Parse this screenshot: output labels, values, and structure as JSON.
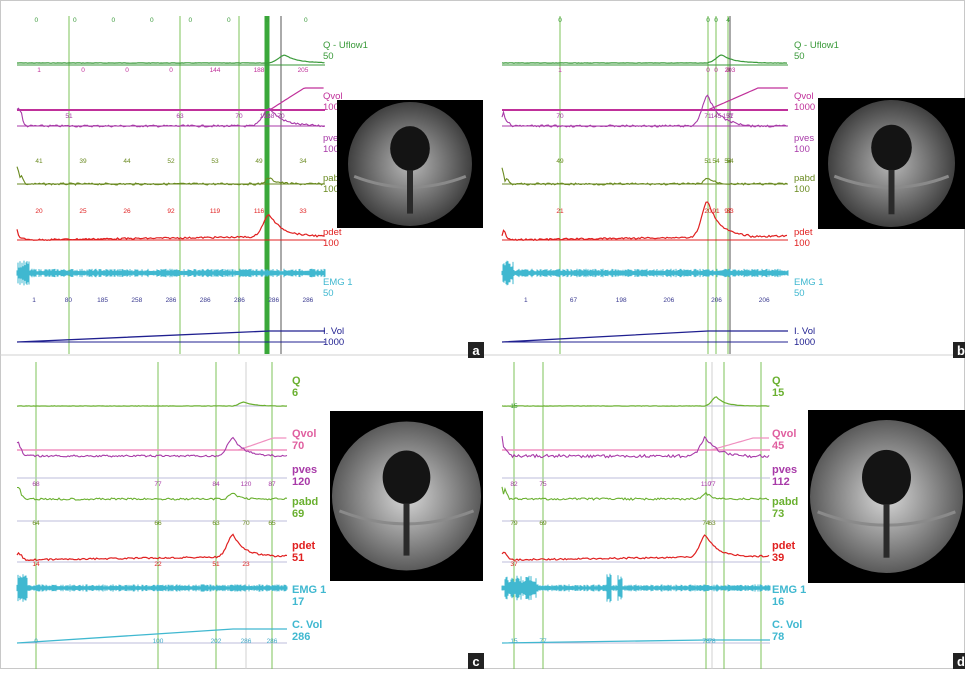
{
  "panels": [
    {
      "id": "a",
      "label": "a",
      "channels": [
        {
          "name": "Q - Uflow1",
          "scale": "50",
          "color": "#3a9a3a"
        },
        {
          "name": "Qvol",
          "scale": "1000",
          "color": "#c0309a"
        },
        {
          "name": "pves",
          "scale": "100",
          "color": "#a83aa8"
        },
        {
          "name": "pabd",
          "scale": "100",
          "color": "#6a8a20"
        },
        {
          "name": "pdet",
          "scale": "100",
          "color": "#e02020"
        },
        {
          "name": "EMG 1",
          "scale": "50",
          "color": "#40b8d0"
        },
        {
          "name": "I. Vol",
          "scale": "1000",
          "color": "#202090"
        }
      ],
      "marker_values": {
        "top": [
          "0",
          "0",
          "0",
          "0",
          "0",
          "0",
          "0",
          "0"
        ],
        "qvol": [
          "1",
          "0",
          "0",
          "0",
          "144",
          "188",
          "205"
        ],
        "pves": [
          "51",
          "63",
          "70",
          "172",
          "168",
          "70"
        ],
        "pabd": [
          "41",
          "39",
          "44",
          "52",
          "53",
          "49",
          "34"
        ],
        "pdet": [
          "20",
          "25",
          "26",
          "92",
          "119",
          "116",
          "33"
        ],
        "ivol": [
          "1",
          "80",
          "185",
          "258",
          "286",
          "286",
          "286",
          "286",
          "286"
        ]
      }
    },
    {
      "id": "b",
      "label": "b",
      "channels": [
        {
          "name": "Q - Uflow1",
          "scale": "50",
          "color": "#3a9a3a"
        },
        {
          "name": "Qvol",
          "scale": "1000",
          "color": "#c0309a"
        },
        {
          "name": "pves",
          "scale": "100",
          "color": "#a83aa8"
        },
        {
          "name": "pabd",
          "scale": "100",
          "color": "#6a8a20"
        },
        {
          "name": "pdet",
          "scale": "100",
          "color": "#e02020"
        },
        {
          "name": "EMG 1",
          "scale": "50",
          "color": "#40b8d0"
        },
        {
          "name": "I. Vol",
          "scale": "1000",
          "color": "#202090"
        }
      ],
      "marker_values": {
        "top": [
          "0",
          "0",
          "0",
          "4"
        ],
        "qvol": [
          "1",
          "0",
          "0",
          "0",
          "203"
        ],
        "pves": [
          "70",
          "71",
          "145",
          "151",
          "77"
        ],
        "pabd": [
          "49",
          "51",
          "54",
          "54",
          "54"
        ],
        "pdet": [
          "21",
          "20",
          "91",
          "97",
          "33"
        ],
        "ivol": [
          "1",
          "67",
          "198",
          "206",
          "206",
          "206"
        ]
      }
    },
    {
      "id": "c",
      "label": "c",
      "channels": [
        {
          "name": "Q",
          "scale": "6",
          "color": "#6ab030"
        },
        {
          "name": "Qvol",
          "scale": "70",
          "color": "#e060a0"
        },
        {
          "name": "pves",
          "scale": "120",
          "color": "#a83aa8"
        },
        {
          "name": "pabd",
          "scale": "69",
          "color": "#6ab030"
        },
        {
          "name": "pdet",
          "scale": "51",
          "color": "#e02020"
        },
        {
          "name": "EMG 1",
          "scale": "17",
          "color": "#40b8d0"
        },
        {
          "name": "C. Vol",
          "scale": "286",
          "color": "#40b8d0"
        }
      ],
      "marker_values": {
        "pves": [
          "68",
          "77",
          "84",
          "120",
          "87"
        ],
        "pabd": [
          "64",
          "66",
          "63",
          "70",
          "65"
        ],
        "pdet": [
          "14",
          "22",
          "51",
          "23"
        ],
        "cvol": [
          "0",
          "100",
          "202",
          "286",
          "286"
        ]
      }
    },
    {
      "id": "d",
      "label": "d",
      "channels": [
        {
          "name": "Q",
          "scale": "15",
          "color": "#6ab030"
        },
        {
          "name": "Qvol",
          "scale": "45",
          "color": "#e060a0"
        },
        {
          "name": "pves",
          "scale": "112",
          "color": "#a83aa8"
        },
        {
          "name": "pabd",
          "scale": "73",
          "color": "#6ab030"
        },
        {
          "name": "pdet",
          "scale": "39",
          "color": "#e02020"
        },
        {
          "name": "EMG 1",
          "scale": "16",
          "color": "#40b8d0"
        },
        {
          "name": "C. Vol",
          "scale": "78",
          "color": "#40b8d0"
        }
      ],
      "marker_values": {
        "top": [
          "15"
        ],
        "pves": [
          "82",
          "75",
          "110",
          "77"
        ],
        "pabd": [
          "79",
          "69",
          "74",
          "63"
        ],
        "pdet": [
          "37"
        ],
        "cvol": [
          "15",
          "77",
          "78",
          "78"
        ]
      }
    }
  ],
  "chart_data": {
    "type": "line",
    "title": "",
    "panels": [
      {
        "panel": "a",
        "series": [
          "Q - Uflow1",
          "Qvol",
          "pves",
          "pabd",
          "pdet",
          "EMG 1",
          "I. Vol"
        ],
        "scales": [
          50,
          1000,
          100,
          100,
          100,
          50,
          1000
        ]
      },
      {
        "panel": "b",
        "series": [
          "Q - Uflow1",
          "Qvol",
          "pves",
          "pabd",
          "pdet",
          "EMG 1",
          "I. Vol"
        ],
        "scales": [
          50,
          1000,
          100,
          100,
          100,
          50,
          1000
        ]
      },
      {
        "panel": "c",
        "series": [
          "Q",
          "Qvol",
          "pves",
          "pabd",
          "pdet",
          "EMG 1",
          "C. Vol"
        ],
        "scales": [
          6,
          70,
          120,
          69,
          51,
          17,
          286
        ]
      },
      {
        "panel": "d",
        "series": [
          "Q",
          "Qvol",
          "pves",
          "pabd",
          "pdet",
          "EMG 1",
          "C. Vol"
        ],
        "scales": [
          15,
          45,
          112,
          73,
          39,
          16,
          78
        ]
      }
    ]
  }
}
